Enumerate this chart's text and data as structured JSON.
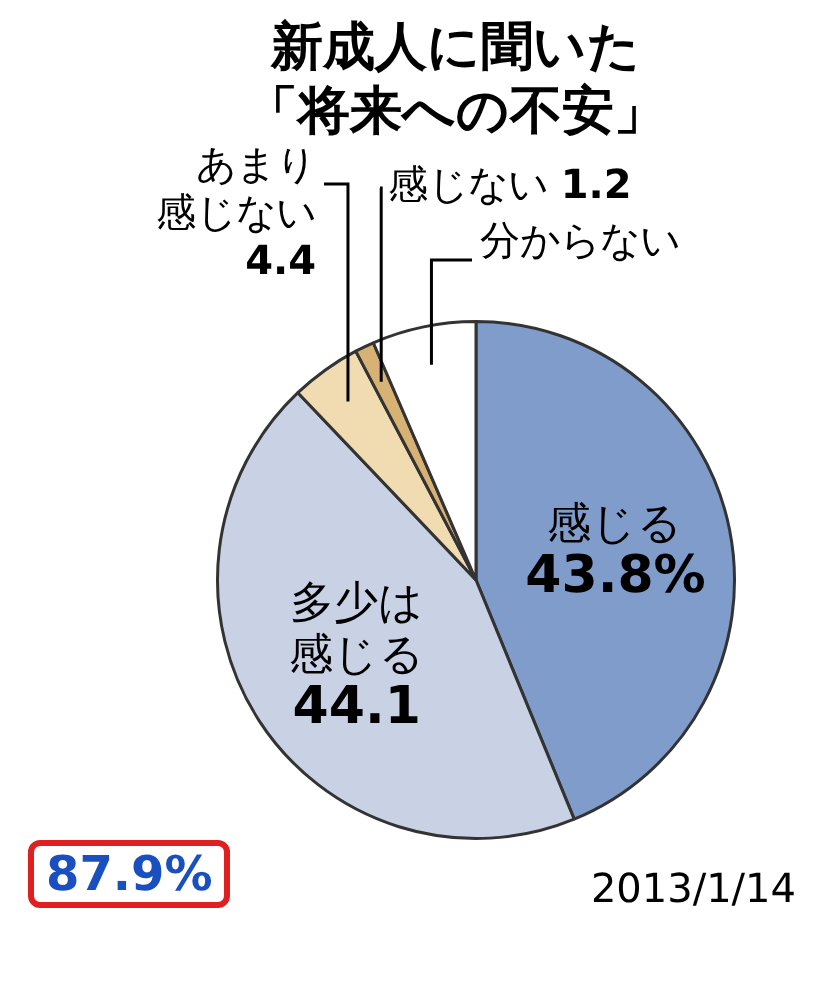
{
  "chart_data": {
    "type": "pie",
    "title": "新成人に聞いた「将来への不安」",
    "categories": [
      "感じる",
      "多少は感じる",
      "あまり感じない",
      "感じない",
      "分からない"
    ],
    "values": [
      43.8,
      44.1,
      4.4,
      1.2,
      6.5
    ],
    "value_labels": [
      "43.8%",
      "44.1",
      "4.4",
      "1.2",
      null
    ],
    "colors": [
      "#7f9ccb",
      "#c9d2e4",
      "#f0dcb0",
      "#d6b274",
      "#ffffff"
    ],
    "legend": false,
    "annotations": [
      "87.9%",
      "2013/1/14"
    ]
  }
}
